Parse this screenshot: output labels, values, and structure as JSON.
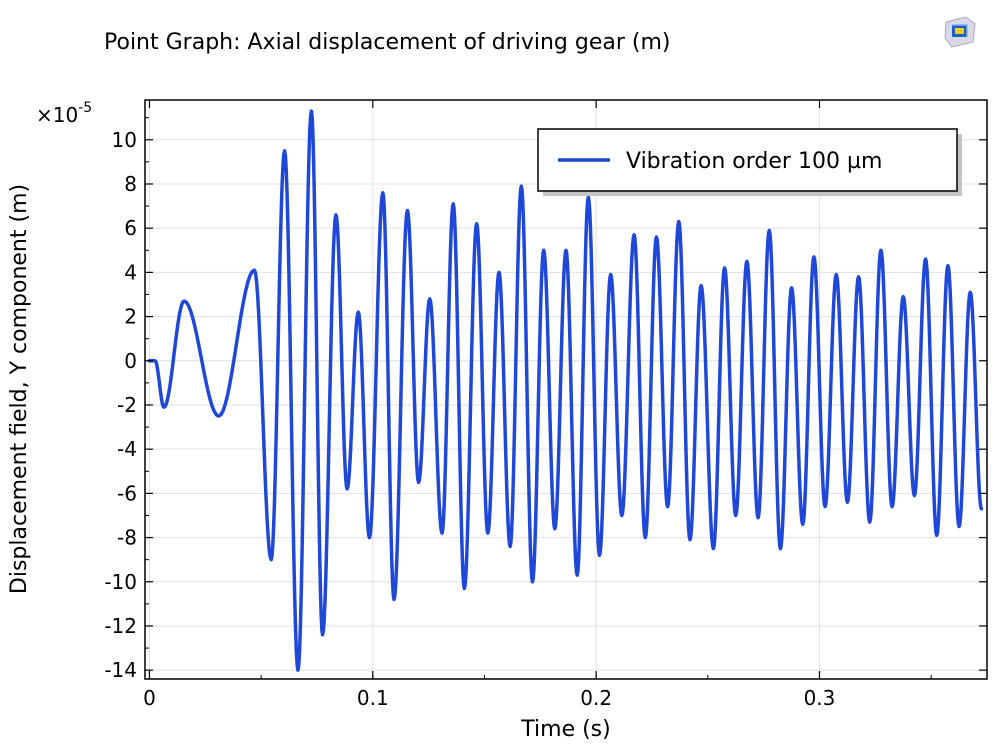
{
  "chart_data": {
    "type": "line",
    "title": "Point Graph: Axial displacement of driving gear (m)",
    "xlabel": "Time (s)",
    "ylabel": "Displacement field, Y component (m)",
    "y_multiplier": "×10",
    "y_exponent": "-5",
    "xlim": [
      -0.002,
      0.375
    ],
    "ylim": [
      -14.4,
      11.8
    ],
    "x_ticks": [
      0,
      0.1,
      0.2,
      0.3
    ],
    "x_tick_labels": [
      "0",
      "0.1",
      "0.2",
      "0.3"
    ],
    "y_ticks": [
      10,
      8,
      6,
      4,
      2,
      0,
      -2,
      -4,
      -6,
      -8,
      -10,
      -12,
      -14
    ],
    "y_tick_labels": [
      "10",
      "8",
      "6",
      "4",
      "2",
      "0",
      "-2",
      "-4",
      "-6",
      "-8",
      "-10",
      "-12",
      "-14"
    ],
    "grid": true,
    "legend_position": "top-right",
    "series": [
      {
        "name": "Vibration order 100 µm",
        "color": "#1f48d8",
        "points": [
          [
            0,
            0
          ],
          [
            0.0025,
            0
          ],
          [
            0.0065,
            -2.1
          ],
          [
            0.0155,
            2.7
          ],
          [
            0.031,
            -2.5
          ],
          [
            0.047,
            4.1
          ],
          [
            0.0545,
            -9.0
          ],
          [
            0.0605,
            9.5
          ],
          [
            0.0665,
            -14.0
          ],
          [
            0.0725,
            11.3
          ],
          [
            0.0775,
            -12.4
          ],
          [
            0.0835,
            6.6
          ],
          [
            0.0885,
            -5.8
          ],
          [
            0.0935,
            2.2
          ],
          [
            0.0985,
            -8.0
          ],
          [
            0.1045,
            7.6
          ],
          [
            0.1095,
            -10.8
          ],
          [
            0.1155,
            6.8
          ],
          [
            0.1205,
            -5.5
          ],
          [
            0.1255,
            2.8
          ],
          [
            0.131,
            -7.8
          ],
          [
            0.136,
            7.1
          ],
          [
            0.141,
            -10.3
          ],
          [
            0.1465,
            6.2
          ],
          [
            0.1515,
            -7.8
          ],
          [
            0.1565,
            4.0
          ],
          [
            0.1615,
            -8.4
          ],
          [
            0.1665,
            7.9
          ],
          [
            0.1715,
            -10.0
          ],
          [
            0.1765,
            5.0
          ],
          [
            0.1815,
            -7.6
          ],
          [
            0.1865,
            5.0
          ],
          [
            0.1915,
            -9.7
          ],
          [
            0.1965,
            7.4
          ],
          [
            0.2015,
            -8.8
          ],
          [
            0.2065,
            3.9
          ],
          [
            0.2115,
            -7.0
          ],
          [
            0.217,
            5.7
          ],
          [
            0.222,
            -8.0
          ],
          [
            0.227,
            5.6
          ],
          [
            0.232,
            -6.6
          ],
          [
            0.237,
            6.3
          ],
          [
            0.242,
            -8.1
          ],
          [
            0.247,
            3.4
          ],
          [
            0.2525,
            -8.5
          ],
          [
            0.2575,
            4.2
          ],
          [
            0.2625,
            -7.0
          ],
          [
            0.2675,
            4.5
          ],
          [
            0.2725,
            -7.1
          ],
          [
            0.2775,
            5.9
          ],
          [
            0.2825,
            -8.5
          ],
          [
            0.2875,
            3.3
          ],
          [
            0.2925,
            -7.4
          ],
          [
            0.2975,
            4.7
          ],
          [
            0.3025,
            -6.6
          ],
          [
            0.3075,
            3.9
          ],
          [
            0.3125,
            -6.4
          ],
          [
            0.3175,
            3.8
          ],
          [
            0.3225,
            -7.3
          ],
          [
            0.3275,
            5.0
          ],
          [
            0.3325,
            -6.6
          ],
          [
            0.3375,
            2.9
          ],
          [
            0.3425,
            -6.1
          ],
          [
            0.3475,
            4.6
          ],
          [
            0.3525,
            -7.9
          ],
          [
            0.3575,
            4.3
          ],
          [
            0.3625,
            -7.5
          ],
          [
            0.3675,
            3.1
          ],
          [
            0.3725,
            -6.7
          ]
        ]
      }
    ]
  }
}
